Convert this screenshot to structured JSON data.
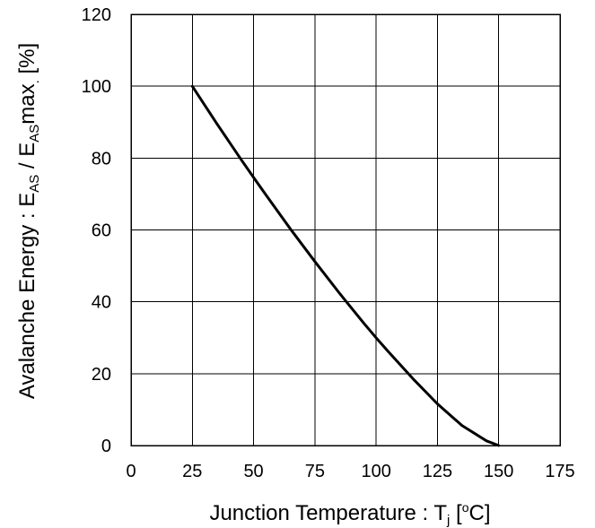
{
  "chart_data": {
    "type": "line",
    "xlabel": {
      "main": "Junction Temperature : T",
      "sub": "j",
      "unit_open": " [",
      "degree": "o",
      "unit_close": "C]"
    },
    "ylabel": {
      "part1": "Avalanche Energy : E",
      "sub1": "AS",
      "part2": " / E",
      "sub2": "AS",
      "part3": "max",
      "sub3": ".",
      "part4": " [%]"
    },
    "xlim": [
      0,
      175
    ],
    "ylim": [
      0,
      120
    ],
    "x_ticks": [
      "0",
      "25",
      "50",
      "75",
      "100",
      "125",
      "150",
      "175"
    ],
    "y_ticks": [
      "0",
      "20",
      "40",
      "60",
      "80",
      "100",
      "120"
    ],
    "grid": true,
    "series": [
      {
        "x": [
          25,
          35,
          45,
          50,
          55,
          65,
          75,
          85,
          95,
          100,
          105,
          115,
          125,
          135,
          145,
          150
        ],
        "y": [
          100,
          89.6,
          79.5,
          74.6,
          69.8,
          60.3,
          51.2,
          42.4,
          34.0,
          30.0,
          26.1,
          18.6,
          11.6,
          5.6,
          1.3,
          0
        ]
      }
    ]
  }
}
